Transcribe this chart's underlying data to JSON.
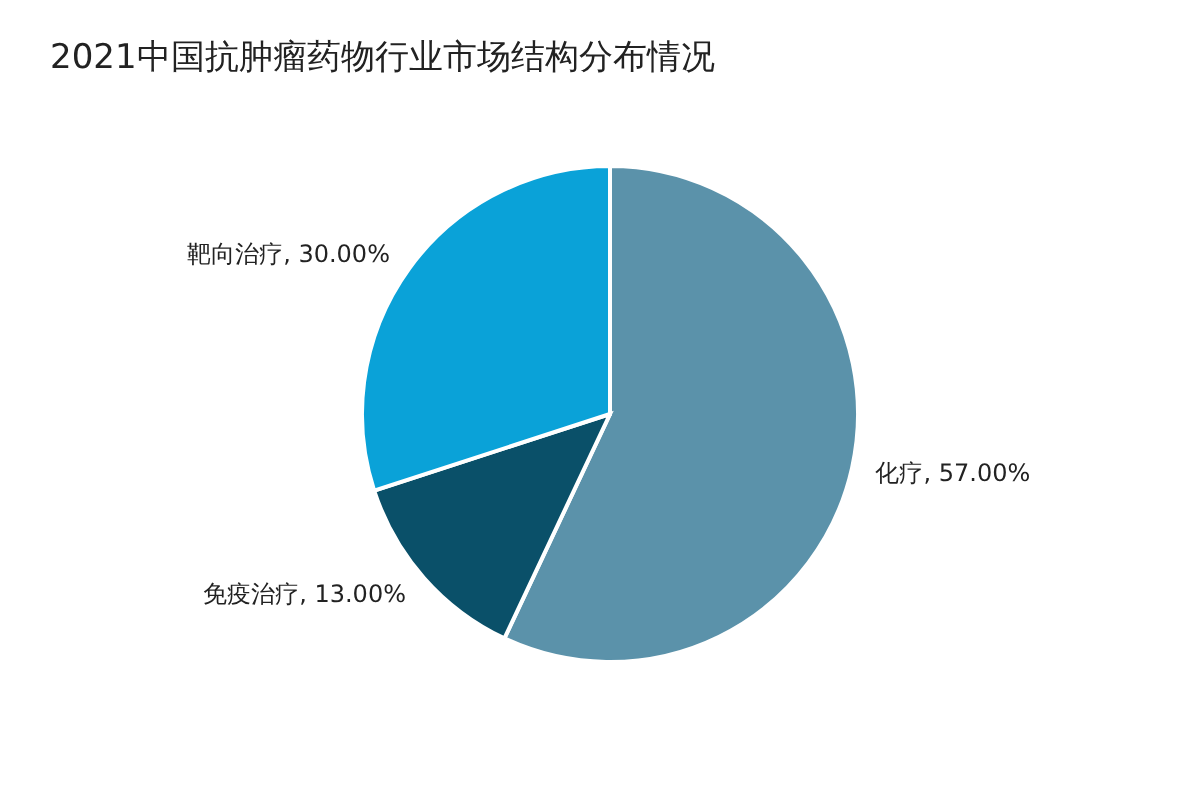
{
  "chart_data": {
    "type": "pie",
    "title": "2021中国抗肿瘤药物行业市场结构分布情况",
    "categories": [
      "化疗",
      "免疫治疗",
      "靶向治疗"
    ],
    "values": [
      57,
      13,
      30
    ],
    "value_labels": [
      "57.00%",
      "13.00%",
      "30.00%"
    ],
    "colors": [
      "#5b92aa",
      "#0a5069",
      "#0aa2d8"
    ]
  }
}
